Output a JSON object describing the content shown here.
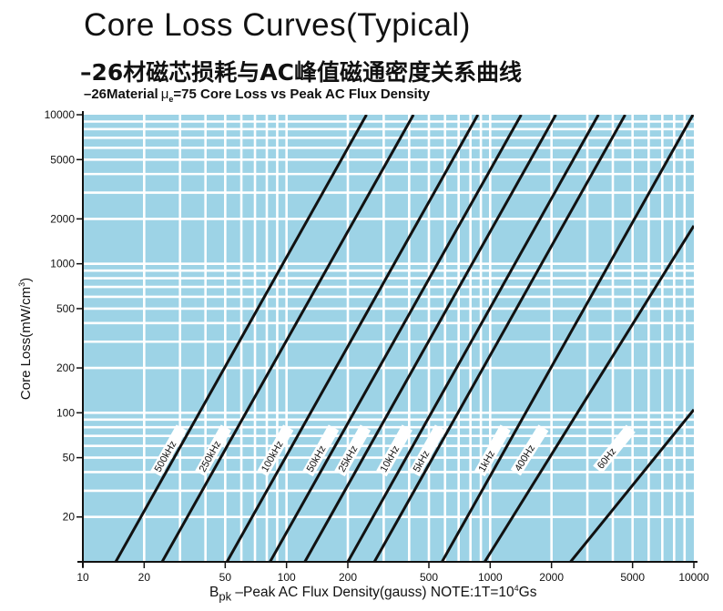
{
  "chart_data": {
    "type": "line",
    "title": "Core Loss Curves(Typical)",
    "subtitle_cn": "–26材磁芯损耗与AC峰值磁通密度关系曲线",
    "subtitle_en_prefix": "–26Material",
    "subtitle_en_mu": "μ",
    "subtitle_en_sub": "e",
    "subtitle_en_suffix": "=75 Core Loss vs Peak AC Flux Density",
    "xlabel_main": "B",
    "xlabel_sub": "pk",
    "xlabel_rest": " –Peak AC Flux Density(gauss)  NOTE:1T=10",
    "xlabel_sup": "4",
    "xlabel_end": "Gs",
    "ylabel_main": "Core Loss(mW/cm",
    "ylabel_sup": "3",
    "ylabel_end": ")",
    "x_scale": "log",
    "y_scale": "log",
    "xlim": [
      10,
      10000
    ],
    "ylim": [
      10,
      10000
    ],
    "x_ticks": [
      10,
      20,
      50,
      100,
      200,
      500,
      1000,
      2000,
      5000,
      10000
    ],
    "x_tick_labels": [
      "10",
      "20",
      "50",
      "100",
      "200",
      "500",
      "1000",
      "2000",
      "5000",
      "10000"
    ],
    "y_ticks": [
      20,
      50,
      100,
      200,
      500,
      1000,
      2000,
      5000,
      10000
    ],
    "y_tick_labels": [
      "20",
      "50",
      "100",
      "200",
      "500",
      "1000",
      "2000",
      "5000",
      "10000"
    ],
    "grid": true,
    "background_color": "#9dd3e6",
    "line_color": "#111111",
    "series": [
      {
        "name": "500kHz",
        "points": [
          [
            14.5,
            10
          ],
          [
            247,
            10000
          ]
        ],
        "label_at": [
          29,
          60
        ]
      },
      {
        "name": "250kHz",
        "points": [
          [
            24.5,
            10
          ],
          [
            420,
            10000
          ]
        ],
        "label_at": [
          48,
          60
        ]
      },
      {
        "name": "100kHz",
        "points": [
          [
            51,
            10
          ],
          [
            870,
            10000
          ]
        ],
        "label_at": [
          97,
          60
        ]
      },
      {
        "name": "50kHz",
        "points": [
          [
            83,
            10
          ],
          [
            1420,
            10000
          ]
        ],
        "label_at": [
          162,
          60
        ]
      },
      {
        "name": "25kHz",
        "points": [
          [
            123,
            10
          ],
          [
            2100,
            10000
          ]
        ],
        "label_at": [
          232,
          60
        ]
      },
      {
        "name": "10kHz",
        "points": [
          [
            200,
            10
          ],
          [
            3400,
            10000
          ]
        ],
        "label_at": [
          372,
          60
        ]
      },
      {
        "name": "5kHz",
        "points": [
          [
            270,
            10
          ],
          [
            4600,
            10000
          ]
        ],
        "label_at": [
          540,
          60
        ]
      },
      {
        "name": "1kHz",
        "points": [
          [
            580,
            10
          ],
          [
            9900,
            10000
          ]
        ],
        "label_at": [
          1130,
          60
        ]
      },
      {
        "name": "400Hz",
        "points": [
          [
            940,
            10
          ],
          [
            10000,
            1800
          ]
        ],
        "label_at": [
          1720,
          60
        ]
      },
      {
        "name": "60Hz",
        "points": [
          [
            2480,
            10
          ],
          [
            10000,
            105
          ]
        ],
        "label_at": [
          4500,
          60
        ]
      }
    ]
  }
}
